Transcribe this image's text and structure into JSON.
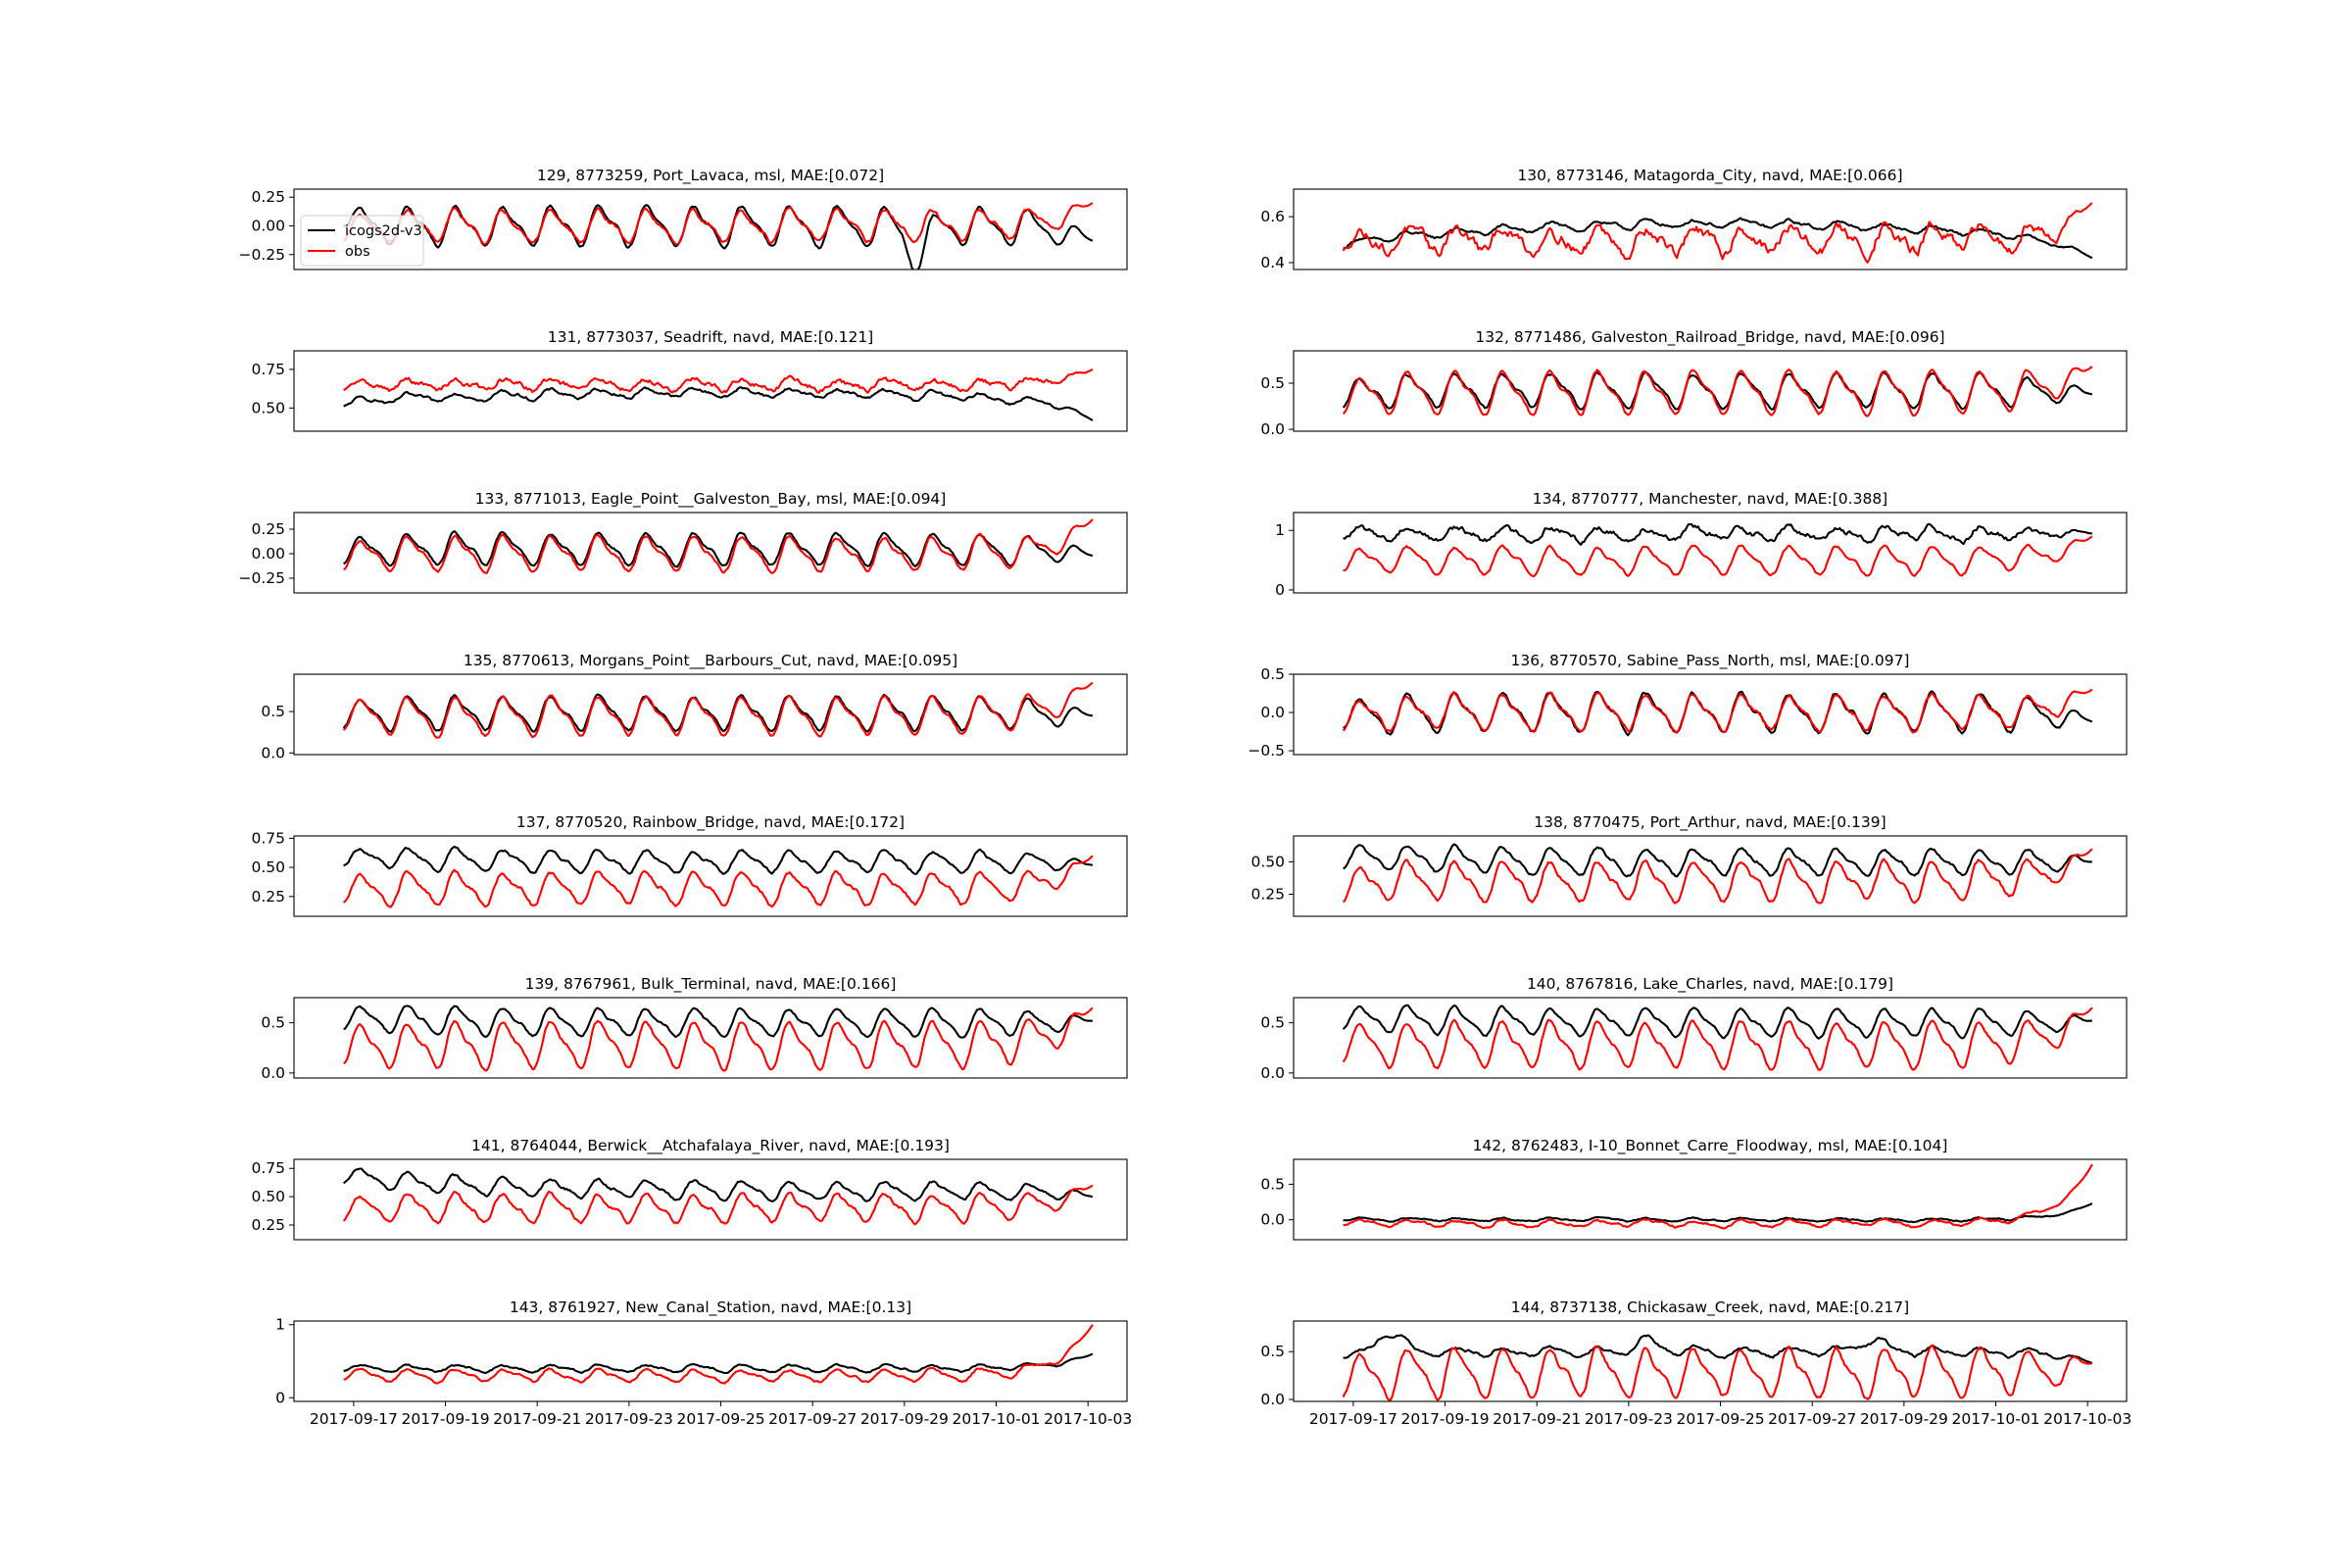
{
  "figure": {
    "legend": {
      "placement": "upper-left",
      "panel_index": 0,
      "entries": [
        "icogs2d-v3",
        "obs"
      ]
    },
    "colors": {
      "model": "#000000",
      "obs": "#ff0000",
      "axes": "#000000"
    },
    "x_tick_labels": [
      "2017-09-17",
      "2017-09-19",
      "2017-09-21",
      "2017-09-23",
      "2017-09-25",
      "2017-09-27",
      "2017-09-29",
      "2017-10-01",
      "2017-10-03"
    ]
  },
  "chart_data": [
    {
      "type": "line",
      "title": "129, 8773259, Port_Lavaca, msl, MAE:[0.072]",
      "ylim": [
        -0.38,
        0.32
      ],
      "yticks": [
        -0.25,
        0.0,
        0.25
      ],
      "ytick_labels": [
        "−0.25",
        "0.00",
        "0.25"
      ],
      "x": [
        "2017-09-16",
        "2017-10-03"
      ],
      "series": [
        {
          "name": "icogs2d-v3",
          "color": "#000000",
          "start": 0.05,
          "end": -0.13,
          "mean": 0.0,
          "amp": 0.15,
          "noise": 0.015,
          "peak": [
            [
              0.5,
              0.28
            ]
          ],
          "dip": [
            [
              13.3,
              -0.35
            ]
          ]
        },
        {
          "name": "obs",
          "color": "#ff0000",
          "start": -0.1,
          "end": 0.2,
          "mean": 0.0,
          "amp": 0.12,
          "noise": 0.02
        }
      ]
    },
    {
      "type": "line",
      "title": "130, 8773146, Matagorda_City, navd, MAE:[0.066]",
      "ylim": [
        0.37,
        0.72
      ],
      "yticks": [
        0.4,
        0.6
      ],
      "ytick_labels": [
        "0.4",
        "0.6"
      ],
      "x": [
        "2017-09-16",
        "2017-10-03"
      ],
      "series": [
        {
          "name": "icogs2d-v3",
          "color": "#000000",
          "start": 0.41,
          "end": 0.42,
          "mean": 0.5,
          "amp": 0.015,
          "noise": 0.008,
          "mid": 0.57
        },
        {
          "name": "obs",
          "color": "#ff0000",
          "start": 0.45,
          "end": 0.66,
          "mean": 0.5,
          "amp": 0.05,
          "noise": 0.03
        }
      ]
    },
    {
      "type": "line",
      "title": "131, 8773037, Seadrift, navd, MAE:[0.121]",
      "ylim": [
        0.35,
        0.87
      ],
      "yticks": [
        0.5,
        0.75
      ],
      "ytick_labels": [
        "0.50",
        "0.75"
      ],
      "x": [
        "2017-09-16",
        "2017-10-03"
      ],
      "series": [
        {
          "name": "icogs2d-v3",
          "color": "#000000",
          "start": 0.47,
          "end": 0.42,
          "mean": 0.55,
          "amp": 0.025,
          "noise": 0.012,
          "mid": 0.6
        },
        {
          "name": "obs",
          "color": "#ff0000",
          "start": 0.6,
          "end": 0.75,
          "mean": 0.65,
          "amp": 0.03,
          "noise": 0.02
        }
      ]
    },
    {
      "type": "line",
      "title": "132, 8771486, Galveston_Railroad_Bridge, navd, MAE:[0.096]",
      "ylim": [
        -0.02,
        0.85
      ],
      "yticks": [
        0.0,
        0.5
      ],
      "ytick_labels": [
        "0.0",
        "0.5"
      ],
      "x": [
        "2017-09-16",
        "2017-10-03"
      ],
      "series": [
        {
          "name": "icogs2d-v3",
          "color": "#000000",
          "start": 0.22,
          "end": 0.38,
          "mean": 0.42,
          "amp": 0.16,
          "noise": 0.02
        },
        {
          "name": "obs",
          "color": "#ff0000",
          "start": 0.15,
          "end": 0.68,
          "mean": 0.4,
          "amp": 0.2,
          "noise": 0.02
        }
      ]
    },
    {
      "type": "line",
      "title": "133, 8771013, Eagle_Point__Galveston_Bay, msl, MAE:[0.094]",
      "ylim": [
        -0.4,
        0.42
      ],
      "yticks": [
        -0.25,
        0.0,
        0.25
      ],
      "ytick_labels": [
        "−0.25",
        "0.00",
        "0.25"
      ],
      "x": [
        "2017-09-16",
        "2017-10-03"
      ],
      "series": [
        {
          "name": "icogs2d-v3",
          "color": "#000000",
          "start": -0.1,
          "end": -0.02,
          "mean": 0.05,
          "amp": 0.14,
          "noise": 0.015
        },
        {
          "name": "obs",
          "color": "#ff0000",
          "start": -0.15,
          "end": 0.35,
          "mean": 0.0,
          "amp": 0.15,
          "noise": 0.02
        }
      ]
    },
    {
      "type": "line",
      "title": "134, 8770777, Manchester, navd, MAE:[0.388]",
      "ylim": [
        -0.05,
        1.3
      ],
      "yticks": [
        0,
        1
      ],
      "ytick_labels": [
        "0",
        "1"
      ],
      "x": [
        "2017-09-16",
        "2017-10-03"
      ],
      "series": [
        {
          "name": "icogs2d-v3",
          "color": "#000000",
          "start": 0.9,
          "end": 0.95,
          "mean": 0.95,
          "amp": 0.1,
          "noise": 0.06
        },
        {
          "name": "obs",
          "color": "#ff0000",
          "start": 0.45,
          "end": 0.9,
          "mean": 0.5,
          "amp": 0.2,
          "noise": 0.03
        }
      ]
    },
    {
      "type": "line",
      "title": "135, 8770613, Morgans_Point__Barbours_Cut, navd, MAE:[0.095]",
      "ylim": [
        -0.02,
        0.95
      ],
      "yticks": [
        0.0,
        0.5
      ],
      "ytick_labels": [
        "0.0",
        "0.5"
      ],
      "x": [
        "2017-09-16",
        "2017-10-03"
      ],
      "series": [
        {
          "name": "icogs2d-v3",
          "color": "#000000",
          "start": 0.35,
          "end": 0.45,
          "mean": 0.48,
          "amp": 0.18,
          "noise": 0.02
        },
        {
          "name": "obs",
          "color": "#ff0000",
          "start": 0.4,
          "end": 0.85,
          "mean": 0.45,
          "amp": 0.2,
          "noise": 0.02
        }
      ]
    },
    {
      "type": "line",
      "title": "136, 8770570, Sabine_Pass_North, msl, MAE:[0.097]",
      "ylim": [
        -0.55,
        0.5
      ],
      "yticks": [
        -0.5,
        0.0,
        0.5
      ],
      "ytick_labels": [
        "−0.5",
        "0.0",
        "0.5"
      ],
      "x": [
        "2017-09-16",
        "2017-10-03"
      ],
      "series": [
        {
          "name": "icogs2d-v3",
          "color": "#000000",
          "start": -0.4,
          "end": -0.12,
          "mean": 0.0,
          "amp": 0.22,
          "noise": 0.03,
          "peak": [
            [
              0.35,
              0.45
            ]
          ]
        },
        {
          "name": "obs",
          "color": "#ff0000",
          "start": -0.3,
          "end": 0.3,
          "mean": 0.0,
          "amp": 0.2,
          "noise": 0.03
        }
      ]
    },
    {
      "type": "line",
      "title": "137, 8770520, Rainbow_Bridge, navd, MAE:[0.172]",
      "ylim": [
        0.08,
        0.77
      ],
      "yticks": [
        0.25,
        0.5,
        0.75
      ],
      "ytick_labels": [
        "0.25",
        "0.50",
        "0.75"
      ],
      "x": [
        "2017-09-16",
        "2017-10-03"
      ],
      "series": [
        {
          "name": "icogs2d-v3",
          "color": "#000000",
          "start": 0.55,
          "end": 0.52,
          "mean": 0.55,
          "amp": 0.08,
          "noise": 0.015,
          "startmean": 0.62
        },
        {
          "name": "obs",
          "color": "#ff0000",
          "start": 0.28,
          "end": 0.6,
          "mean": 0.32,
          "amp": 0.12,
          "noise": 0.02
        }
      ]
    },
    {
      "type": "line",
      "title": "138, 8770475, Port_Arthur, navd, MAE:[0.139]",
      "ylim": [
        0.08,
        0.7
      ],
      "yticks": [
        0.25,
        0.5
      ],
      "ytick_labels": [
        "0.25",
        "0.50"
      ],
      "x": [
        "2017-09-16",
        "2017-10-03"
      ],
      "series": [
        {
          "name": "icogs2d-v3",
          "color": "#000000",
          "start": 0.45,
          "end": 0.5,
          "mean": 0.5,
          "amp": 0.09,
          "noise": 0.015,
          "startmean": 0.58
        },
        {
          "name": "obs",
          "color": "#ff0000",
          "start": 0.2,
          "end": 0.6,
          "mean": 0.35,
          "amp": 0.13,
          "noise": 0.02
        }
      ]
    },
    {
      "type": "line",
      "title": "139, 8767961, Bulk_Terminal, navd, MAE:[0.166]",
      "ylim": [
        -0.05,
        0.75
      ],
      "yticks": [
        0.0,
        0.5
      ],
      "ytick_labels": [
        "0.0",
        "0.5"
      ],
      "x": [
        "2017-09-16",
        "2017-10-03"
      ],
      "series": [
        {
          "name": "icogs2d-v3",
          "color": "#000000",
          "start": 0.5,
          "end": 0.52,
          "mean": 0.5,
          "amp": 0.12,
          "noise": 0.015,
          "startmean": 0.58
        },
        {
          "name": "obs",
          "color": "#ff0000",
          "start": 0.25,
          "end": 0.65,
          "mean": 0.28,
          "amp": 0.2,
          "noise": 0.02
        }
      ]
    },
    {
      "type": "line",
      "title": "140, 8767816, Lake_Charles, navd, MAE:[0.179]",
      "ylim": [
        -0.05,
        0.75
      ],
      "yticks": [
        0.0,
        0.5
      ],
      "ytick_labels": [
        "0.0",
        "0.5"
      ],
      "x": [
        "2017-09-16",
        "2017-10-03"
      ],
      "series": [
        {
          "name": "icogs2d-v3",
          "color": "#000000",
          "start": 0.5,
          "end": 0.52,
          "mean": 0.5,
          "amp": 0.12,
          "noise": 0.015,
          "startmean": 0.58
        },
        {
          "name": "obs",
          "color": "#ff0000",
          "start": 0.3,
          "end": 0.65,
          "mean": 0.28,
          "amp": 0.2,
          "noise": 0.02
        }
      ]
    },
    {
      "type": "line",
      "title": "141, 8764044, Berwick__Atchafalaya_River, navd, MAE:[0.193]",
      "ylim": [
        0.12,
        0.83
      ],
      "yticks": [
        0.25,
        0.5,
        0.75
      ],
      "ytick_labels": [
        "0.25",
        "0.50",
        "0.75"
      ],
      "x": [
        "2017-09-16",
        "2017-10-03"
      ],
      "series": [
        {
          "name": "icogs2d-v3",
          "color": "#000000",
          "start": 0.65,
          "end": 0.5,
          "mean": 0.55,
          "amp": 0.07,
          "noise": 0.015,
          "startmean": 0.75
        },
        {
          "name": "obs",
          "color": "#ff0000",
          "start": 0.35,
          "end": 0.6,
          "mean": 0.4,
          "amp": 0.11,
          "noise": 0.02
        }
      ]
    },
    {
      "type": "line",
      "title": "142, 8762483, I-10_Bonnet_Carre_Floodway, msl, MAE:[0.104]",
      "ylim": [
        -0.28,
        0.85
      ],
      "yticks": [
        0.0,
        0.5
      ],
      "ytick_labels": [
        "0.0",
        "0.5"
      ],
      "x": [
        "2017-09-16",
        "2017-10-03"
      ],
      "series": [
        {
          "name": "icogs2d-v3",
          "color": "#000000",
          "start": 0.04,
          "end": 0.23,
          "mean": 0.0,
          "amp": 0.02,
          "noise": 0.012
        },
        {
          "name": "obs",
          "color": "#ff0000",
          "start": 0.0,
          "end": 0.78,
          "mean": -0.05,
          "amp": 0.04,
          "noise": 0.02
        }
      ]
    },
    {
      "type": "line",
      "title": "143, 8761927, New_Canal_Station, navd, MAE:[0.13]",
      "ylim": [
        -0.05,
        1.05
      ],
      "yticks": [
        0,
        1
      ],
      "ytick_labels": [
        "0",
        "1"
      ],
      "x": [
        "2017-09-16",
        "2017-10-03"
      ],
      "series": [
        {
          "name": "icogs2d-v3",
          "color": "#000000",
          "start": 0.42,
          "end": 0.6,
          "mean": 0.4,
          "amp": 0.04,
          "noise": 0.015
        },
        {
          "name": "obs",
          "color": "#ff0000",
          "start": 0.35,
          "end": 1.0,
          "mean": 0.3,
          "amp": 0.07,
          "noise": 0.02
        }
      ]
    },
    {
      "type": "line",
      "title": "144, 8737138, Chickasaw_Creek, navd, MAE:[0.217]",
      "ylim": [
        -0.02,
        0.82
      ],
      "yticks": [
        0.0,
        0.5
      ],
      "ytick_labels": [
        "0.0",
        "0.5"
      ],
      "x": [
        "2017-09-16",
        "2017-10-03"
      ],
      "series": [
        {
          "name": "icogs2d-v3",
          "color": "#000000",
          "start": 0.4,
          "end": 0.38,
          "mean": 0.5,
          "amp": 0.04,
          "noise": 0.02,
          "peak": [
            [
              1.8,
              0.77
            ],
            [
              7.4,
              0.65
            ],
            [
              12.3,
              0.65
            ]
          ]
        },
        {
          "name": "obs",
          "color": "#ff0000",
          "start": 0.05,
          "end": 0.38,
          "mean": 0.28,
          "amp": 0.22,
          "noise": 0.03
        }
      ]
    }
  ]
}
